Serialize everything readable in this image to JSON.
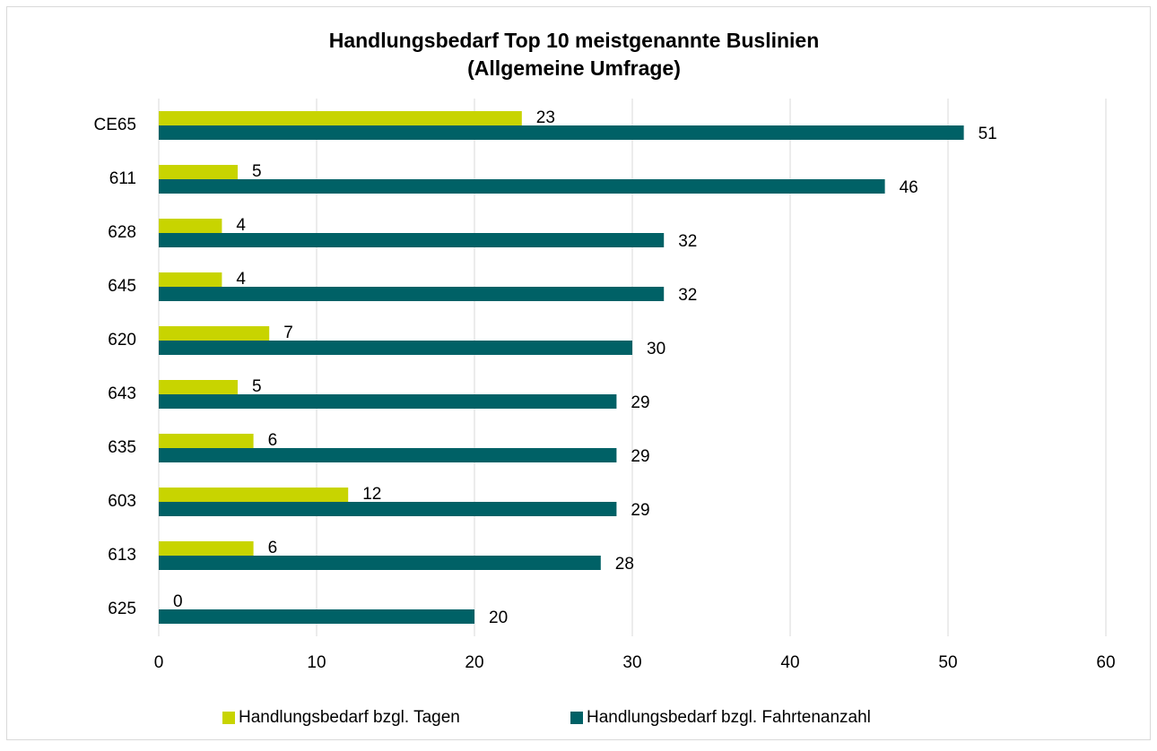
{
  "chart_data": {
    "type": "hbar",
    "title": "Handlungsbedarf Top 10 meistgenannte Buslinien",
    "subtitle": "(Allgemeine Umfrage)",
    "categories": [
      "CE65",
      "611",
      "628",
      "645",
      "620",
      "643",
      "635",
      "603",
      "613",
      "625"
    ],
    "series": [
      {
        "name": "Handlungsbedarf bzgl. Tagen",
        "color": "#c8d400",
        "values": [
          23,
          5,
          4,
          4,
          7,
          5,
          6,
          12,
          6,
          0
        ]
      },
      {
        "name": "Handlungsbedarf bzgl. Fahrtenanzahl",
        "color": "#006166",
        "values": [
          51,
          46,
          32,
          32,
          30,
          29,
          29,
          29,
          28,
          20
        ]
      }
    ],
    "xlim": [
      0,
      60
    ],
    "xticks": [
      0,
      10,
      20,
      30,
      40,
      50,
      60
    ],
    "grid": true,
    "legend": "bottom"
  }
}
